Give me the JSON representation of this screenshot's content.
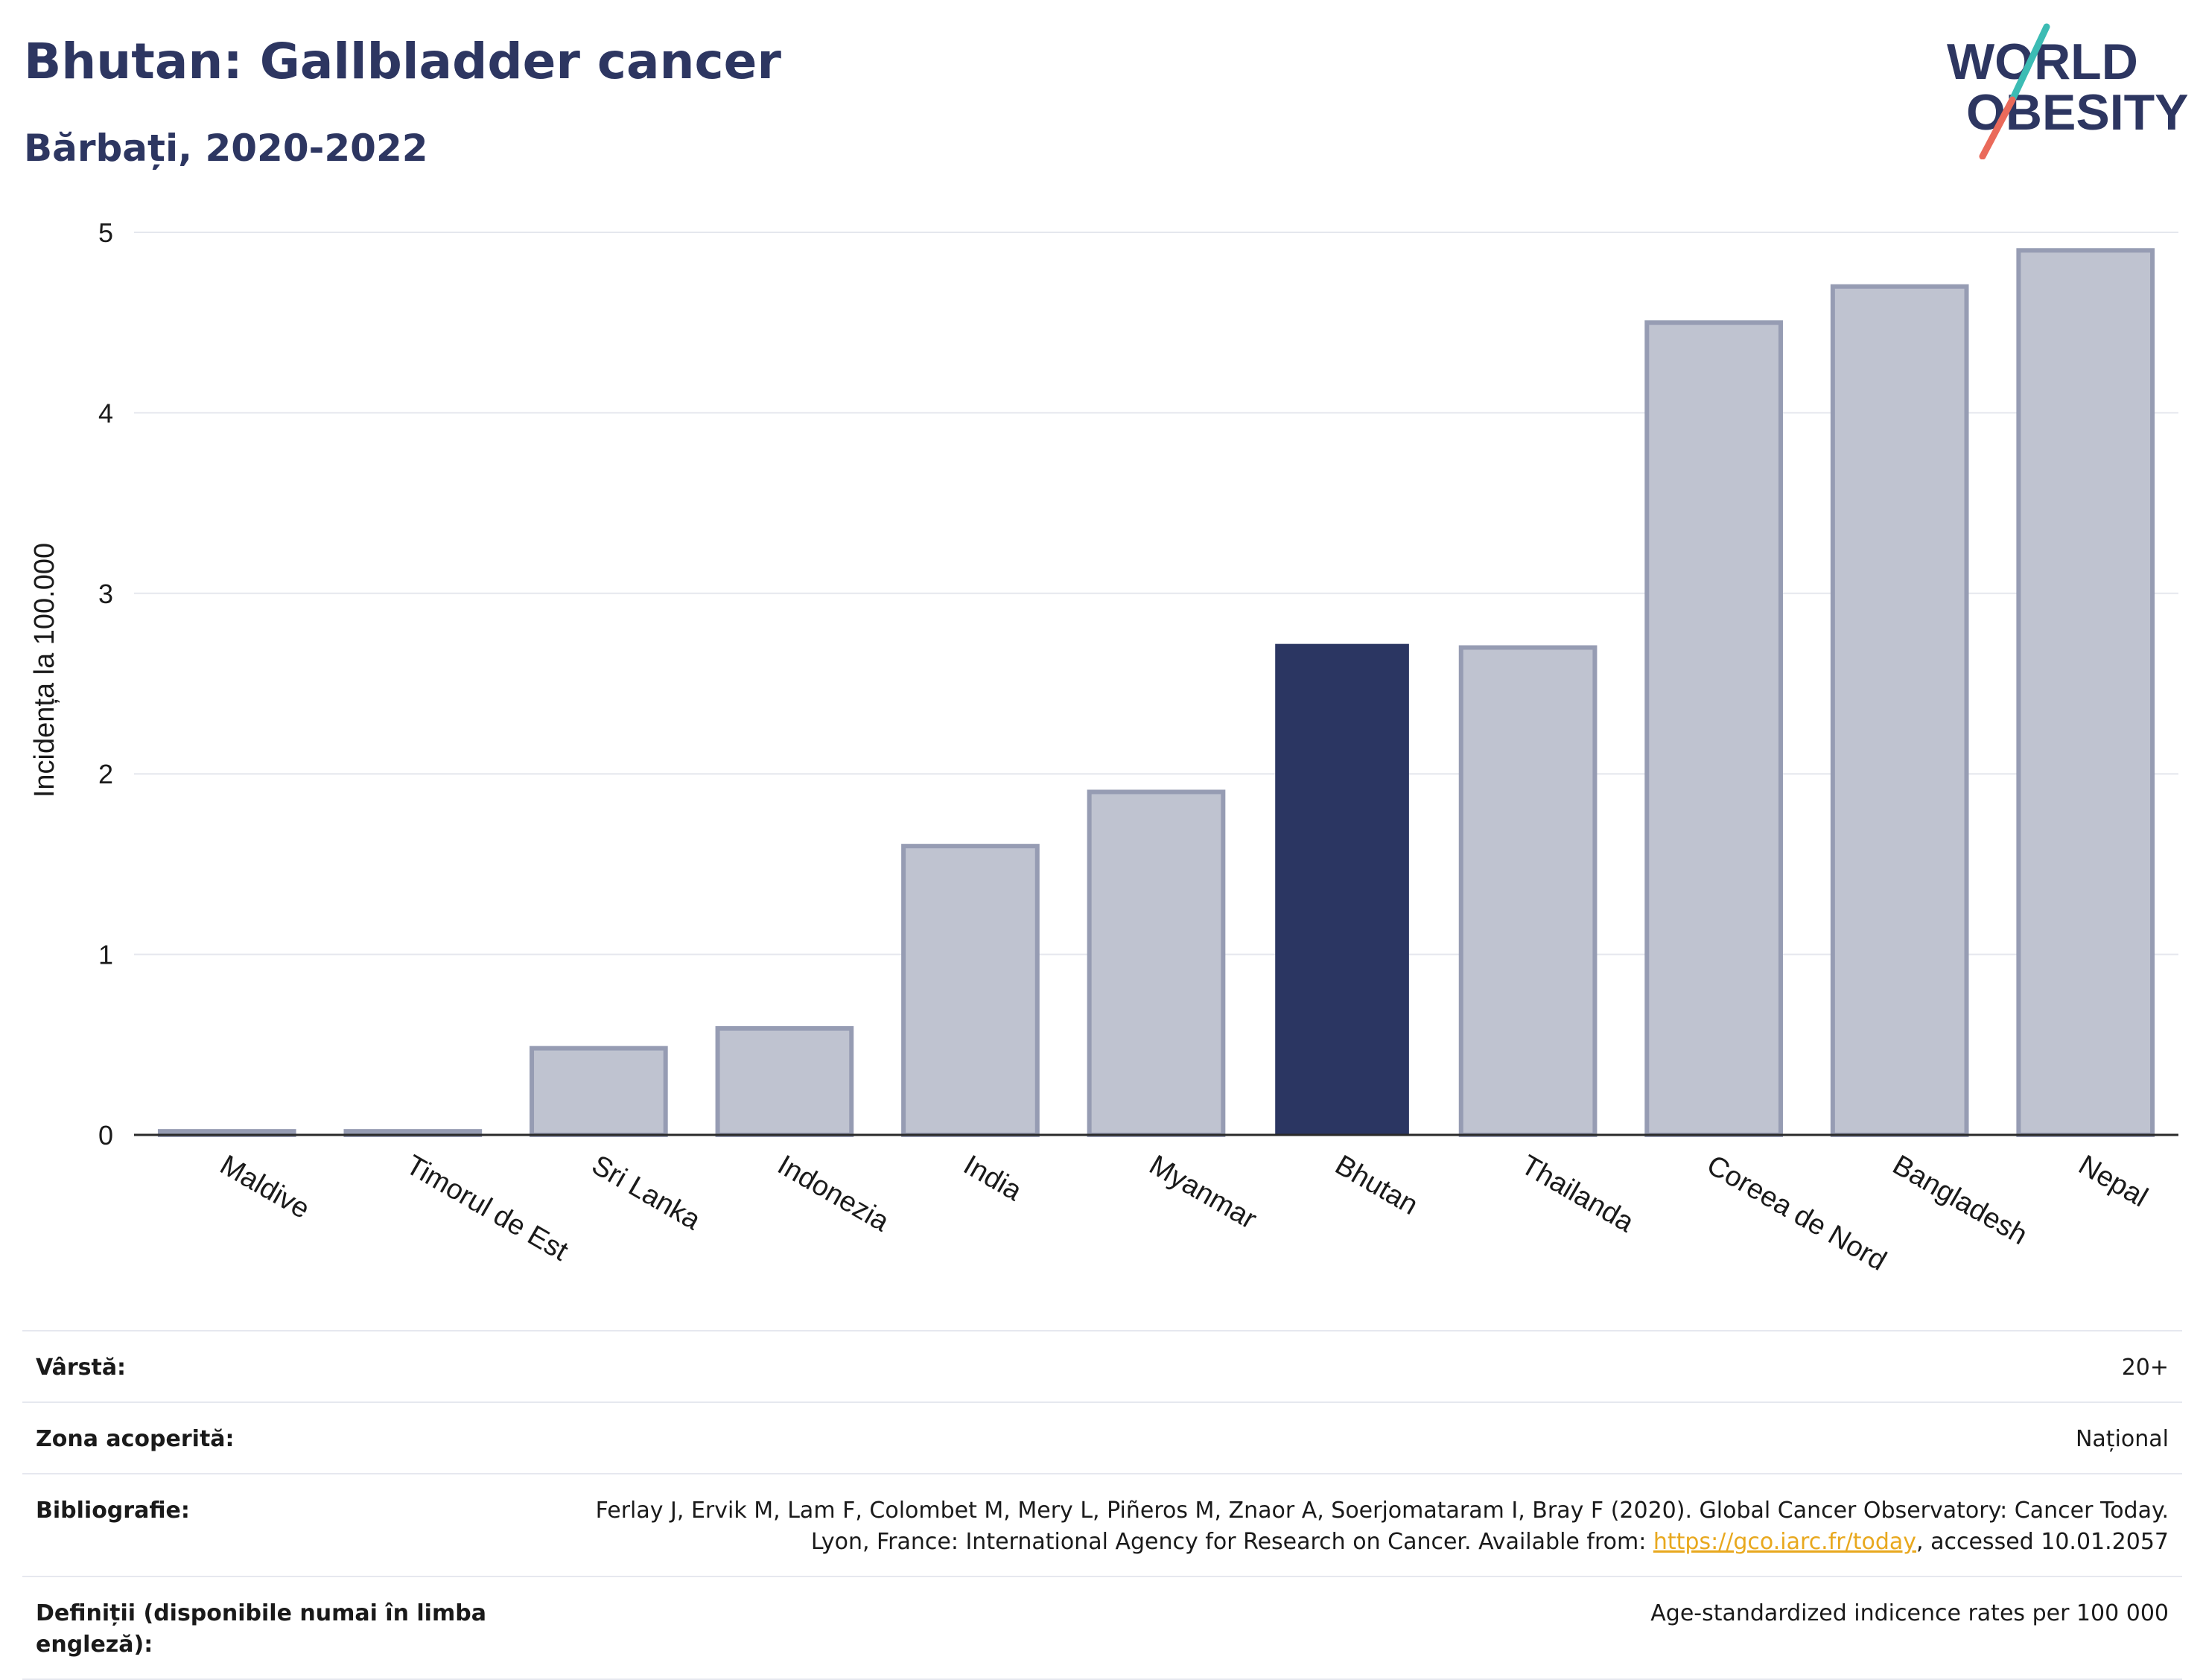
{
  "header": {
    "title": "Bhutan: Gallbladder cancer",
    "subtitle": "Bărbați, 2020-2022"
  },
  "logo": {
    "line1": "WORLD",
    "line2": "OBESITY"
  },
  "colors": {
    "highlight": "#2b3662",
    "bar_fill": "#bfc3d0",
    "bar_stroke": "#969cb3",
    "grid": "#e5e7ee",
    "title": "#2d3661",
    "logo_teal": "#3cbcb4",
    "logo_coral": "#ea6a5a"
  },
  "chart_data": {
    "type": "bar",
    "categories": [
      "Maldive",
      "Timorul de Est",
      "Sri Lanka",
      "Indonezia",
      "India",
      "Myanmar",
      "Bhutan",
      "Thailanda",
      "Coreea de Nord",
      "Bangladesh",
      "Nepal"
    ],
    "values": [
      0.02,
      0.02,
      0.48,
      0.59,
      1.6,
      1.9,
      2.72,
      2.7,
      4.5,
      4.7,
      4.9
    ],
    "highlight": "Bhutan",
    "ylabel": "Incidența la 100.000",
    "xlabel": "",
    "ylim": [
      0,
      5
    ],
    "yticks": [
      0,
      1,
      2,
      3,
      4,
      5
    ],
    "grid": true
  },
  "meta": [
    {
      "label": "Vârstă:",
      "value": "20+"
    },
    {
      "label": "Zona acoperită:",
      "value": "Național"
    },
    {
      "label": "Bibliografie:",
      "value_pre": "Ferlay J, Ervik M, Lam F, Colombet M, Mery L, Piñeros M, Znaor A, Soerjomataram I, Bray F (2020). Global Cancer Observatory: Cancer Today. Lyon, France: International Agency for Research on Cancer. Available from: ",
      "link": "https://gco.iarc.fr/today",
      "value_post": ", accessed 10.01.2057"
    },
    {
      "label": "Definiții (disponibile numai în limba engleză):",
      "value": "Age-standardized indicence rates per 100 000"
    }
  ]
}
